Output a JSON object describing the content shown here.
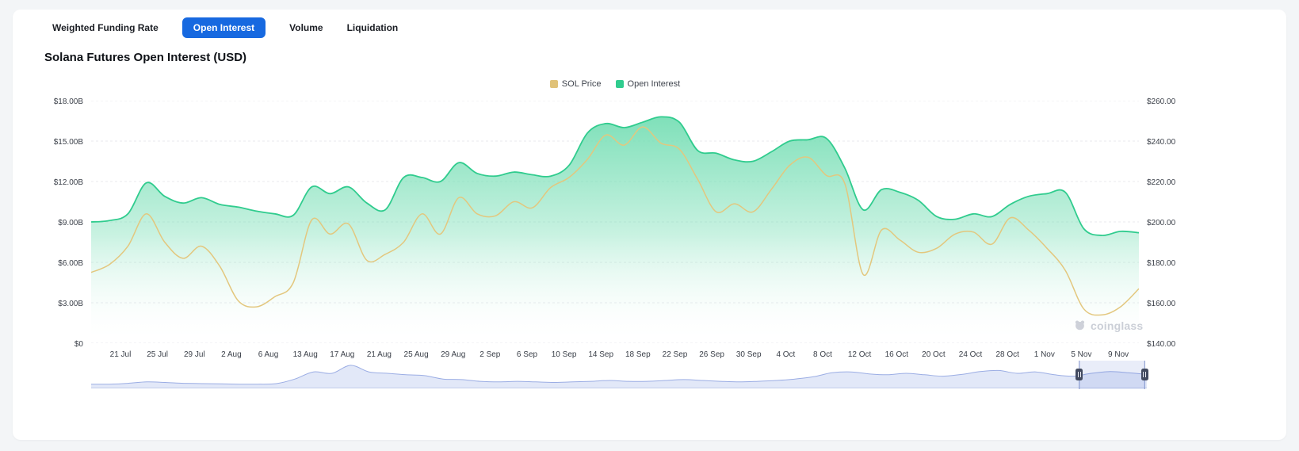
{
  "colors": {
    "accent": "#1769e0",
    "page_bg": "#f3f5f7",
    "card_bg": "#ffffff"
  },
  "tabs": [
    {
      "label": "Weighted Funding Rate",
      "active": false
    },
    {
      "label": "Open Interest",
      "active": true
    },
    {
      "label": "Volume",
      "active": false
    },
    {
      "label": "Liquidation",
      "active": false
    }
  ],
  "title": "Solana Futures Open Interest (USD)",
  "legend": [
    {
      "label": "SOL Price",
      "color": "#e0c278"
    },
    {
      "label": "Open Interest",
      "color": "#30cc8e"
    }
  ],
  "watermark": "coinglass",
  "chart_data": {
    "type": "area+line",
    "title": "Solana Futures Open Interest (USD)",
    "grid": "horizontal-dotted",
    "legend_position": "top-center",
    "categories": [
      "21 Jul",
      "25 Jul",
      "29 Jul",
      "2 Aug",
      "6 Aug",
      "13 Aug",
      "17 Aug",
      "21 Aug",
      "25 Aug",
      "29 Aug",
      "2 Sep",
      "6 Sep",
      "10 Sep",
      "14 Sep",
      "18 Sep",
      "22 Sep",
      "26 Sep",
      "30 Sep",
      "4 Oct",
      "8 Oct",
      "12 Oct",
      "16 Oct",
      "20 Oct",
      "24 Oct",
      "28 Oct",
      "1 Nov",
      "5 Nov",
      "9 Nov"
    ],
    "y_left": {
      "name": "Open Interest",
      "unit": "USD billions",
      "min": 0,
      "max": 18,
      "ticks": [
        "$18.00B",
        "$15.00B",
        "$12.00B",
        "$9.00B",
        "$6.00B",
        "$3.00B",
        "$0"
      ]
    },
    "y_right": {
      "name": "SOL Price",
      "unit": "USD",
      "min": 140,
      "max": 260,
      "ticks": [
        "$260.00",
        "$240.00",
        "$220.00",
        "$200.00",
        "$180.00",
        "$160.00",
        "$140.00"
      ]
    },
    "series": [
      {
        "name": "Open Interest",
        "type": "area",
        "axis": "left",
        "color": "#30cc8e",
        "fill": "#6edcb0",
        "values": [
          9.0,
          9.1,
          9.6,
          11.9,
          10.9,
          10.4,
          10.8,
          10.3,
          10.1,
          9.8,
          9.6,
          9.5,
          11.6,
          11.1,
          11.6,
          10.4,
          9.9,
          12.3,
          12.3,
          12.0,
          13.4,
          12.6,
          12.4,
          12.7,
          12.5,
          12.4,
          13.2,
          15.6,
          16.3,
          16.0,
          16.4,
          16.8,
          16.4,
          14.3,
          14.1,
          13.6,
          13.5,
          14.2,
          15.0,
          15.1,
          15.2,
          13.0,
          9.9,
          11.4,
          11.2,
          10.6,
          9.4,
          9.2,
          9.6,
          9.4,
          10.3,
          10.9,
          11.1,
          11.2,
          8.5,
          8.0,
          8.3,
          8.2
        ]
      },
      {
        "name": "SOL Price",
        "type": "line",
        "axis": "right",
        "color": "#e3c77e",
        "values": [
          175,
          179,
          188,
          204,
          190,
          182,
          188,
          178,
          161,
          158,
          163,
          170,
          201,
          194,
          199,
          181,
          184,
          190,
          204,
          194,
          212,
          204,
          203,
          210,
          207,
          217,
          222,
          231,
          243,
          238,
          247,
          239,
          236,
          221,
          205,
          209,
          205,
          216,
          228,
          232,
          223,
          219,
          174,
          196,
          191,
          185,
          187,
          194,
          195,
          189,
          202,
          196,
          187,
          176,
          157,
          154,
          158,
          167
        ]
      }
    ],
    "navigator": {
      "values": [
        0.12,
        0.12,
        0.15,
        0.2,
        0.18,
        0.15,
        0.14,
        0.13,
        0.12,
        0.12,
        0.14,
        0.3,
        0.55,
        0.5,
        0.78,
        0.55,
        0.5,
        0.45,
        0.42,
        0.3,
        0.28,
        0.22,
        0.2,
        0.22,
        0.2,
        0.18,
        0.2,
        0.22,
        0.25,
        0.22,
        0.22,
        0.25,
        0.28,
        0.25,
        0.22,
        0.2,
        0.22,
        0.25,
        0.3,
        0.38,
        0.52,
        0.55,
        0.48,
        0.45,
        0.5,
        0.45,
        0.4,
        0.46,
        0.56,
        0.6,
        0.5,
        0.55,
        0.45,
        0.4,
        0.5,
        0.56,
        0.52,
        0.46
      ],
      "selection": [
        0.936,
        0.998
      ]
    }
  }
}
